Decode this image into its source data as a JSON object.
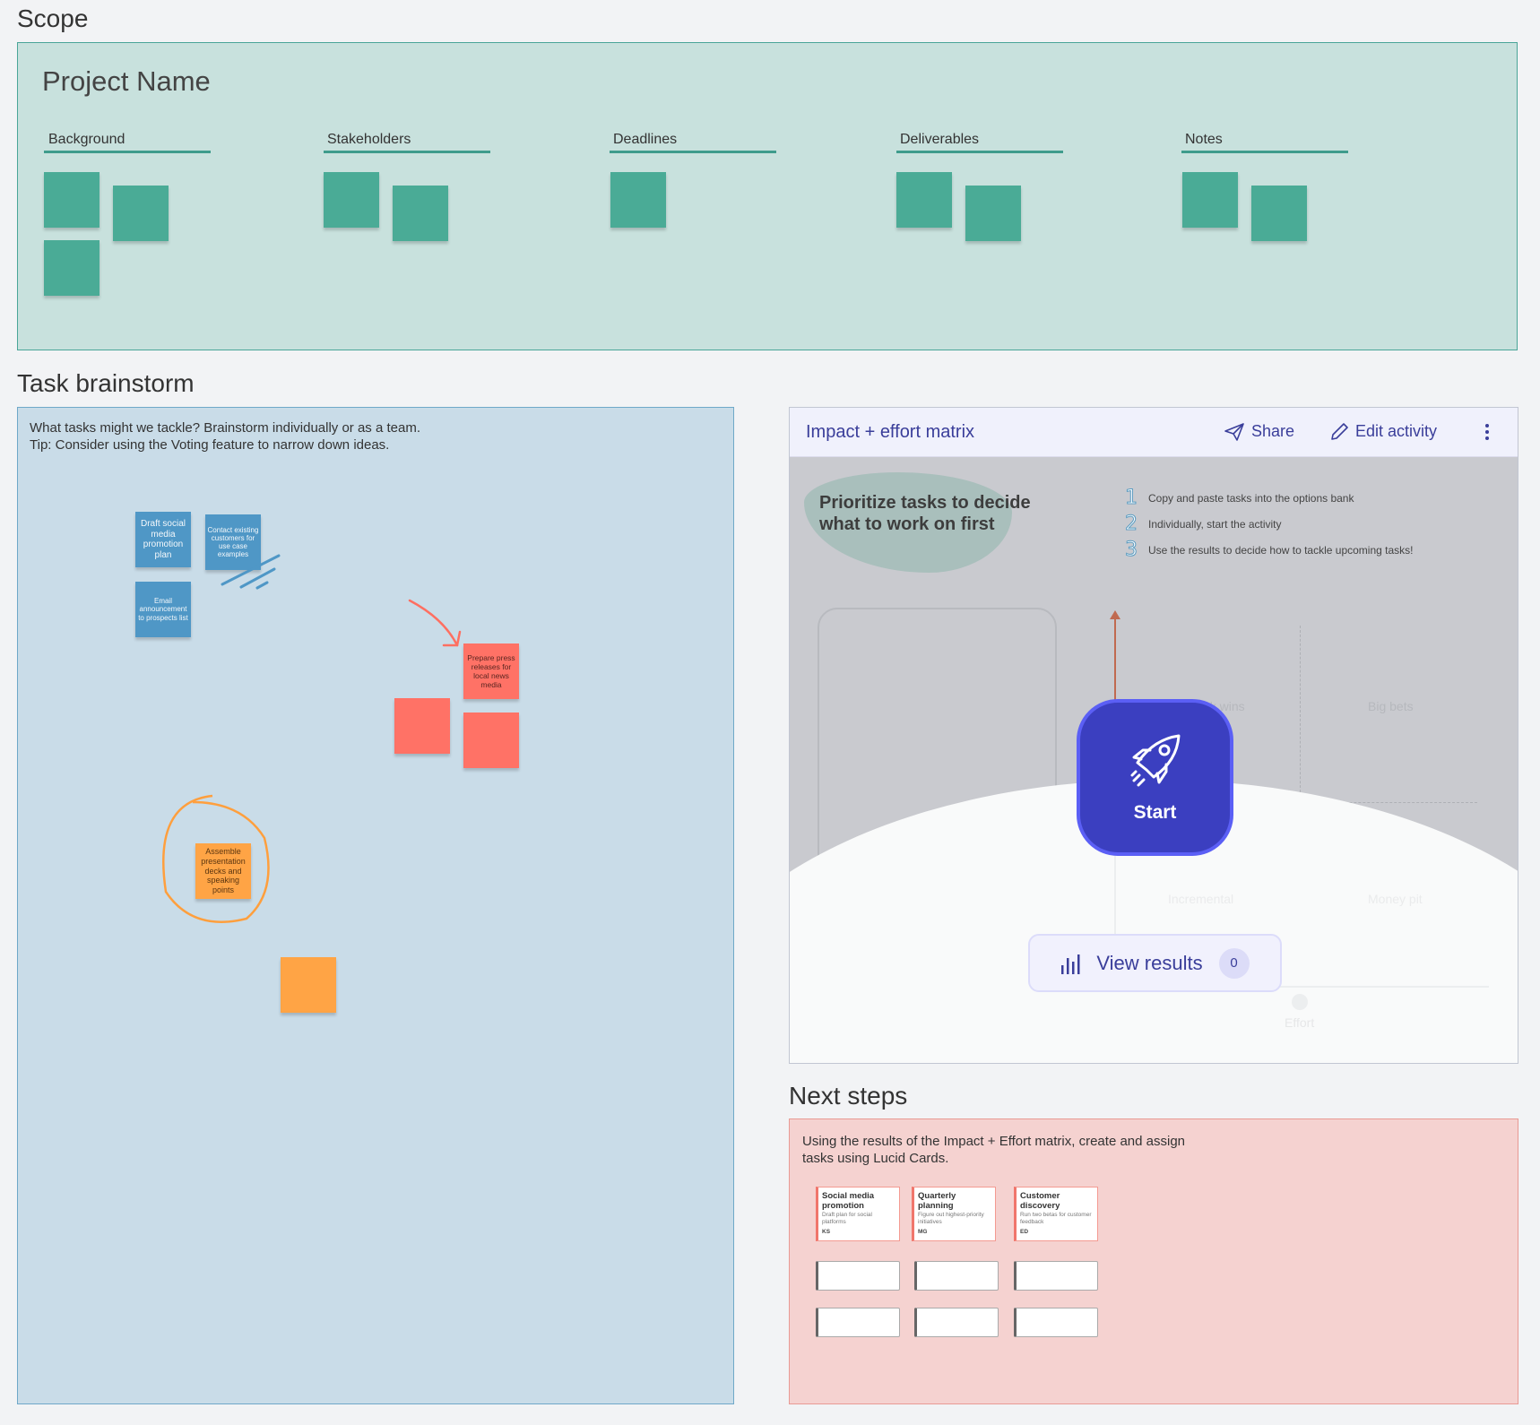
{
  "scope": {
    "title": "Scope",
    "project_name": "Project Name",
    "columns": [
      {
        "label": "Background",
        "notes": 3
      },
      {
        "label": "Stakeholders",
        "notes": 2
      },
      {
        "label": "Deadlines",
        "notes": 1
      },
      {
        "label": "Deliverables",
        "notes": 2
      },
      {
        "label": "Notes",
        "notes": 2
      }
    ]
  },
  "brainstorm": {
    "title": "Task brainstorm",
    "intro_line1": "What tasks might we tackle? Brainstorm individually or as a team.",
    "intro_line2": "Tip: Consider using the Voting feature to narrow down ideas.",
    "notes": {
      "blue1": "Draft social media promotion plan",
      "blue2": "Contact existing customers for use case examples",
      "blue3": "Email announcement to prospects list",
      "red1": "Prepare press releases for local news media",
      "orange1": "Assemble presentation decks and speaking points"
    }
  },
  "matrix": {
    "title": "Impact + effort matrix",
    "share_label": "Share",
    "edit_label": "Edit activity",
    "heading_line1": "Prioritize tasks to decide",
    "heading_line2": "what to work on first",
    "steps": [
      {
        "n": "1",
        "text": "Copy and paste tasks into the options bank"
      },
      {
        "n": "2",
        "text": "Individually, start the activity"
      },
      {
        "n": "3",
        "text": "Use the results to decide how to tackle upcoming tasks!"
      }
    ],
    "quadrants": {
      "q1": "Quick wins",
      "q2": "Big bets",
      "q3": "Incremental",
      "q4": "Money pit"
    },
    "x_axis": "Effort",
    "start_label": "Start",
    "view_results_label": "View results",
    "results_count": "0",
    "colors": {
      "accent": "#3b3fc0",
      "header_text": "#3a3e9a"
    }
  },
  "next_steps": {
    "title": "Next steps",
    "text_line1": "Using the results of the Impact + Effort matrix, create and assign",
    "text_line2": "tasks using Lucid Cards.",
    "cards": [
      {
        "title": "Social media promotion",
        "desc": "Draft plan for social platforms",
        "initials": "KS"
      },
      {
        "title": "Quarterly planning",
        "desc": "Figure out highest-priority initiatives",
        "initials": "MG"
      },
      {
        "title": "Customer discovery",
        "desc": "Run two betas for customer feedback",
        "initials": "ED"
      }
    ]
  }
}
